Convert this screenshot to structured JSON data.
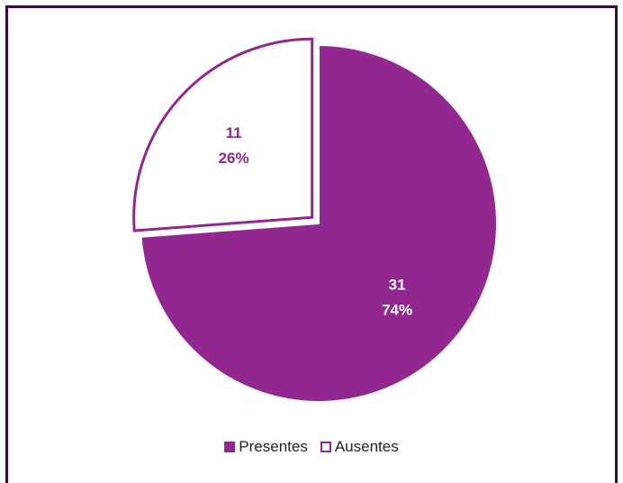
{
  "colors": {
    "presentes": "#91278f",
    "ausentes_fill": "#ffffff",
    "ausentes_stroke": "#91278f",
    "frame": "#3a0a3a"
  },
  "chart_data": {
    "type": "pie",
    "title": "",
    "slices": [
      {
        "label": "Presentes",
        "value": 31,
        "percent_text": "74%",
        "value_text": "31",
        "exploded": false
      },
      {
        "label": "Ausentes",
        "value": 11,
        "percent_text": "26%",
        "value_text": "11",
        "exploded": true
      }
    ],
    "legend": {
      "placement": "bottom",
      "items": [
        {
          "label": "Presentes",
          "style": "filled"
        },
        {
          "label": "Ausentes",
          "style": "outline"
        }
      ]
    }
  }
}
